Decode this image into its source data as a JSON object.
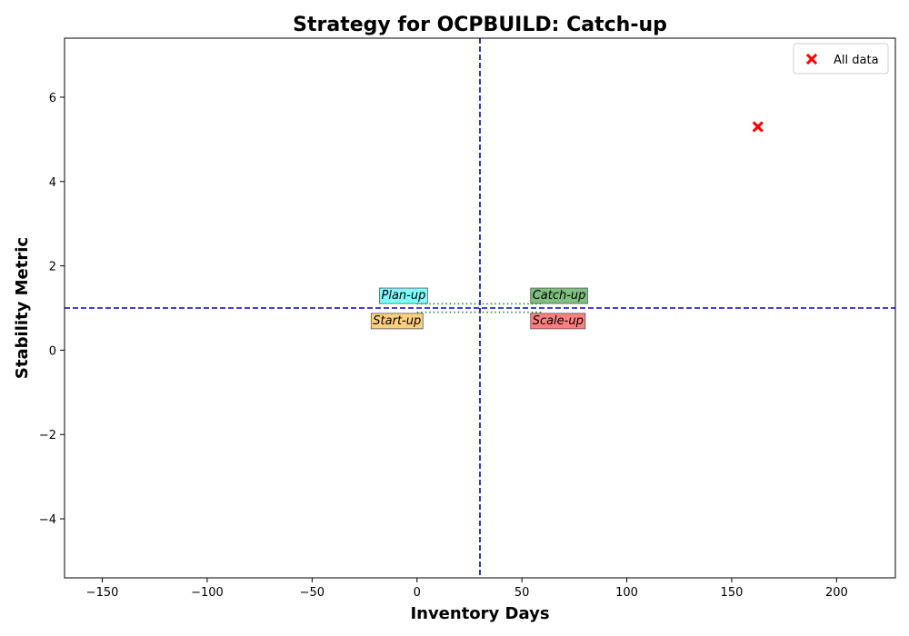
{
  "chart_data": {
    "type": "scatter",
    "title": "Strategy for OCPBUILD: Catch-up",
    "xlabel": "Inventory Days",
    "ylabel": "Stability Metric",
    "xlim": [
      -168,
      228
    ],
    "ylim": [
      -5.4,
      7.4
    ],
    "x_ticks": [
      -150,
      -100,
      -50,
      0,
      50,
      100,
      150,
      200
    ],
    "y_ticks": [
      -4,
      -2,
      0,
      2,
      4,
      6
    ],
    "x_tick_labels": [
      "−150",
      "−100",
      "−50",
      "0",
      "50",
      "100",
      "150",
      "200"
    ],
    "y_tick_labels": [
      "−4",
      "−2",
      "0",
      "2",
      "4",
      "6"
    ],
    "grid": false,
    "legend_position": "top-right",
    "series": [
      {
        "name": "All data",
        "marker": "x",
        "color": "#ff0000",
        "points": [
          {
            "x": 162.5,
            "y": 5.3
          }
        ]
      }
    ],
    "reference_lines": {
      "vertical_x": 30,
      "horizontal_y": 1,
      "color": "#0000cc"
    },
    "dotted_lines": [
      {
        "x1": 0,
        "x2": 60,
        "y": 1.1,
        "color": "#1a7f1a"
      },
      {
        "x1": 0,
        "x2": 60,
        "y": 0.9,
        "color": "#1a7f1a"
      }
    ],
    "quadrant_labels": [
      {
        "text": "Plan-up",
        "x": -17,
        "y": 1.29,
        "color": "#7ffefe"
      },
      {
        "text": "Catch-up",
        "x": 55,
        "y": 1.29,
        "color": "#7fbf7f"
      },
      {
        "text": "Start-up",
        "x": -21,
        "y": 0.69,
        "color": "#fecf7f"
      },
      {
        "text": "Scale-up",
        "x": 55,
        "y": 0.69,
        "color": "#fe7f7f"
      }
    ]
  }
}
